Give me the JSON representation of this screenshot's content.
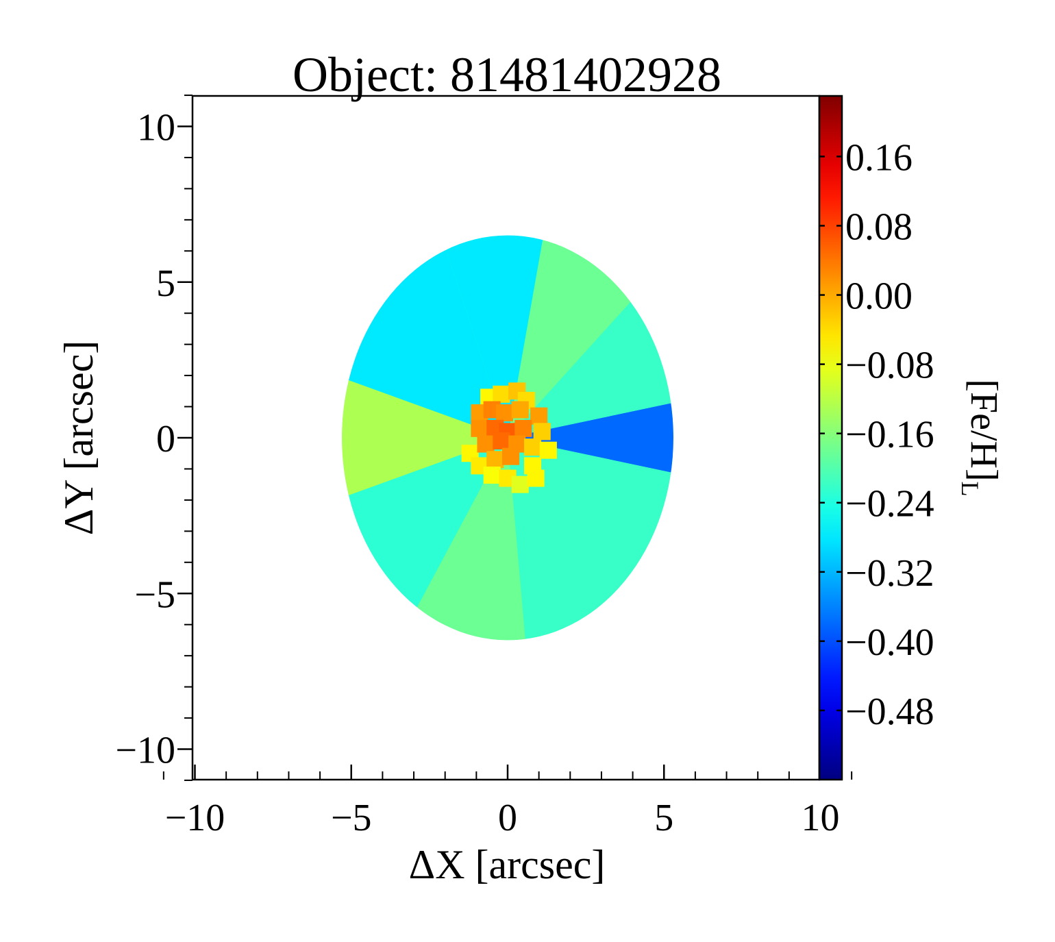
{
  "chart_data": {
    "type": "heatmap",
    "title": "Object: 81481402928",
    "xlabel": "ΔX [arcsec]",
    "ylabel": "ΔY [arcsec]",
    "xlim": [
      -11,
      11
    ],
    "ylim": [
      -11,
      11
    ],
    "x_ticks": [
      -10,
      -5,
      0,
      5,
      10
    ],
    "y_ticks": [
      -10,
      -5,
      0,
      5,
      10
    ],
    "x_tick_labels": [
      "−10",
      "−5",
      "0",
      "5",
      "10"
    ],
    "y_tick_labels": [
      "−10",
      "−5",
      "0",
      "5",
      "10"
    ],
    "colorbar": {
      "label_main": "[Fe/H]",
      "label_sub": "L",
      "colormap": "jet",
      "vmin": -0.56,
      "vmax": 0.23,
      "ticks": [
        0.16,
        0.08,
        0.0,
        -0.08,
        -0.16,
        -0.24,
        -0.32,
        -0.4,
        -0.48
      ],
      "tick_labels": [
        "0.16",
        "0.08",
        "0.00",
        "−0.08",
        "−0.16",
        "−0.24",
        "−0.32",
        "−0.40",
        "−0.48"
      ]
    },
    "map": {
      "center": [
        0,
        0
      ],
      "semi_axis_x": 5.3,
      "semi_axis_y": 6.5,
      "background_value": -0.22,
      "sectors": [
        {
          "from_deg": 80,
          "to_deg": 108,
          "value": -0.28
        },
        {
          "from_deg": 108,
          "to_deg": 160,
          "value": -0.28
        },
        {
          "from_deg": 160,
          "to_deg": 200,
          "value": -0.13
        },
        {
          "from_deg": 200,
          "to_deg": 242,
          "value": -0.23
        },
        {
          "from_deg": 242,
          "to_deg": 275,
          "value": -0.18
        },
        {
          "from_deg": 275,
          "to_deg": 348,
          "value": -0.22
        },
        {
          "from_deg": 348,
          "to_deg": 372,
          "value": -0.38
        },
        {
          "from_deg": 12,
          "to_deg": 48,
          "value": -0.22
        },
        {
          "from_deg": 48,
          "to_deg": 80,
          "value": -0.18
        }
      ],
      "core_pixels": [
        {
          "x": -0.6,
          "y": 1.3,
          "value": -0.06
        },
        {
          "x": -0.2,
          "y": 1.4,
          "value": -0.04
        },
        {
          "x": 0.3,
          "y": 1.5,
          "value": -0.02
        },
        {
          "x": 0.6,
          "y": 1.2,
          "value": -0.04
        },
        {
          "x": -0.9,
          "y": 0.8,
          "value": 0.01
        },
        {
          "x": -0.5,
          "y": 0.9,
          "value": 0.03
        },
        {
          "x": -0.1,
          "y": 0.8,
          "value": 0.02
        },
        {
          "x": 0.4,
          "y": 0.9,
          "value": 0.0
        },
        {
          "x": 1.0,
          "y": 0.7,
          "value": 0.01
        },
        {
          "x": -0.9,
          "y": 0.3,
          "value": 0.02
        },
        {
          "x": -0.4,
          "y": 0.3,
          "value": 0.05
        },
        {
          "x": 0.0,
          "y": 0.2,
          "value": 0.06
        },
        {
          "x": 0.5,
          "y": 0.3,
          "value": 0.03
        },
        {
          "x": 1.1,
          "y": 0.2,
          "value": -0.03
        },
        {
          "x": -1.2,
          "y": -0.5,
          "value": -0.06
        },
        {
          "x": -0.7,
          "y": -0.2,
          "value": 0.02
        },
        {
          "x": -0.2,
          "y": -0.1,
          "value": 0.05
        },
        {
          "x": 0.3,
          "y": -0.2,
          "value": 0.02
        },
        {
          "x": 0.8,
          "y": -0.3,
          "value": -0.03
        },
        {
          "x": 1.3,
          "y": -0.4,
          "value": -0.06
        },
        {
          "x": -0.9,
          "y": -0.9,
          "value": -0.05
        },
        {
          "x": -0.4,
          "y": -0.7,
          "value": -0.01
        },
        {
          "x": 0.1,
          "y": -0.6,
          "value": 0.02
        },
        {
          "x": 0.8,
          "y": -0.9,
          "value": -0.06
        },
        {
          "x": -0.5,
          "y": -1.2,
          "value": -0.07
        },
        {
          "x": 0.0,
          "y": -1.3,
          "value": -0.05
        },
        {
          "x": 0.4,
          "y": -1.5,
          "value": -0.09
        },
        {
          "x": 0.9,
          "y": -1.3,
          "value": -0.06
        }
      ]
    }
  }
}
